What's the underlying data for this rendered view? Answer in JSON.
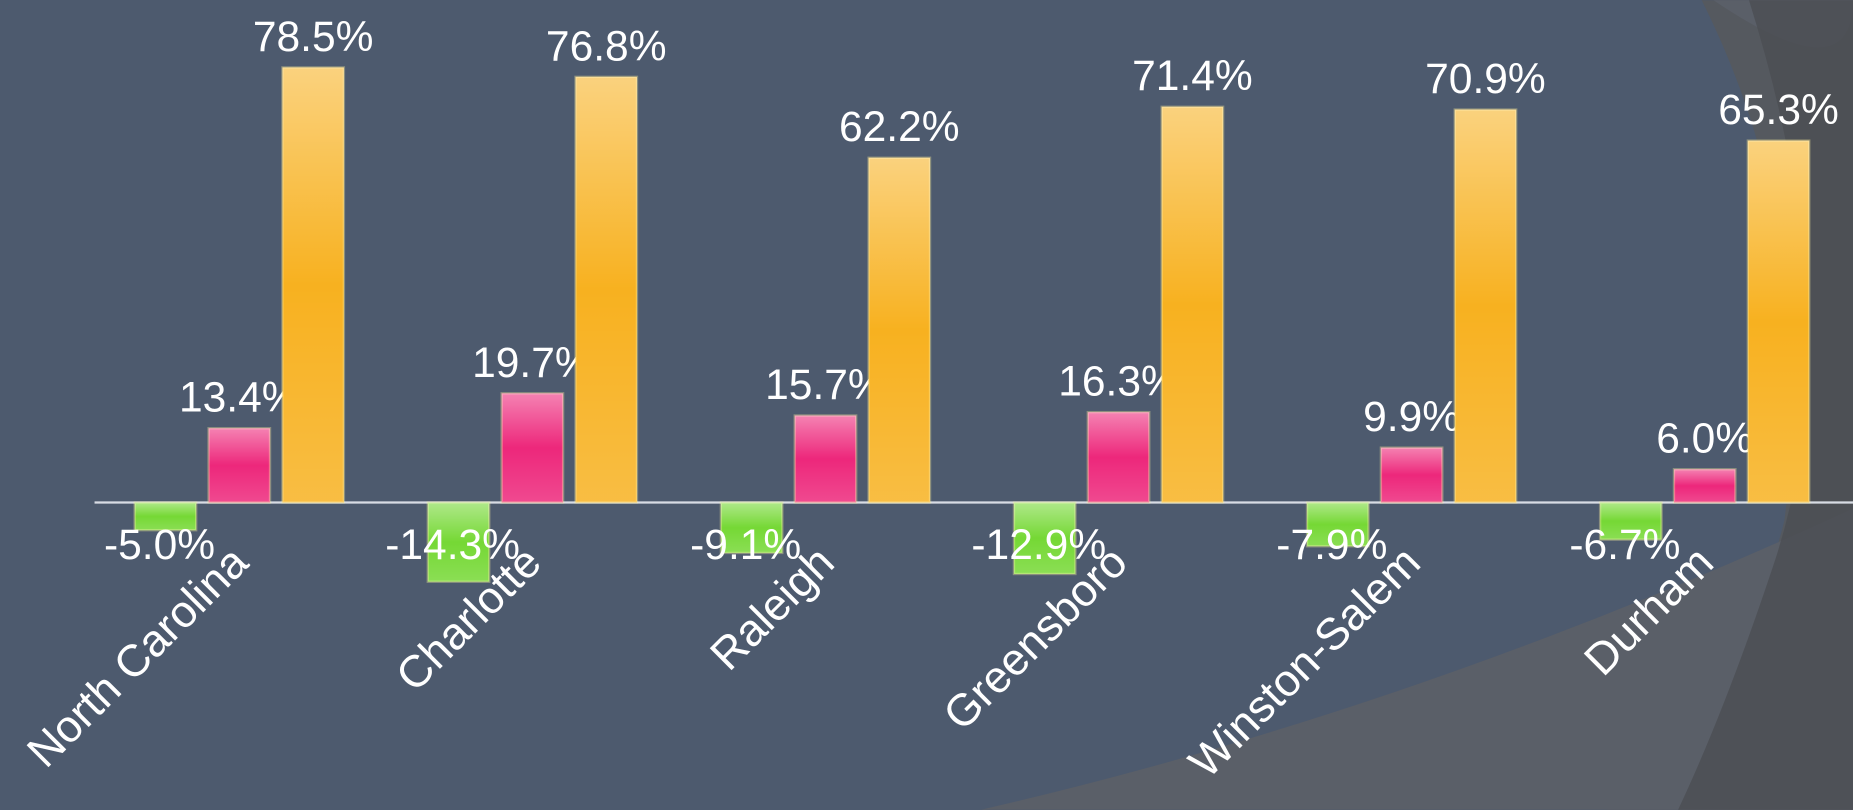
{
  "chart_data": {
    "type": "bar",
    "categories": [
      "North Carolina",
      "Charlotte",
      "Raleigh",
      "Greensboro",
      "Winston-Salem",
      "Durham"
    ],
    "series": [
      {
        "color": "#6ed62a",
        "values": [
          -5.0,
          -14.3,
          -9.1,
          -12.9,
          -7.9,
          -6.7
        ],
        "value_labels": [
          "-5.0%",
          "-14.3%",
          "-9.1%",
          "-12.9%",
          "-7.9%",
          "-6.7%"
        ]
      },
      {
        "color": "#ec1c74",
        "values": [
          13.4,
          19.7,
          15.7,
          16.3,
          9.9,
          6.0
        ],
        "value_labels": [
          "13.4%",
          "19.7%",
          "15.7%",
          "16.3%",
          "9.9%",
          "6.0%"
        ]
      },
      {
        "color": "#f7ad14",
        "values": [
          78.5,
          76.8,
          62.2,
          71.4,
          70.9,
          65.3
        ],
        "value_labels": [
          "78.5%",
          "76.8%",
          "62.2%",
          "71.4%",
          "70.9%",
          "65.3%"
        ]
      }
    ]
  }
}
